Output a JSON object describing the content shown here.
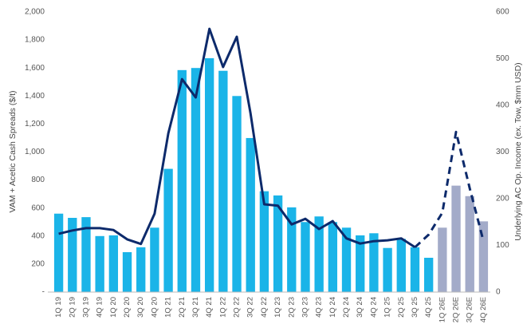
{
  "chart_data": {
    "type": "bar_line",
    "y_label": "VAM + Acetic Cash Spreads ($/t)",
    "y2_label": "Underlying AC Op. Income (ex. Tow, $mm USD)",
    "categories": [
      "1Q 19",
      "2Q 19",
      "3Q 19",
      "4Q 19",
      "1Q 20",
      "2Q 20",
      "3Q 20",
      "4Q 20",
      "1Q 21",
      "2Q 21",
      "3Q 21",
      "4Q 21",
      "1Q 22",
      "2Q 22",
      "3Q 22",
      "4Q 22",
      "1Q 23",
      "2Q 23",
      "3Q 23",
      "4Q 23",
      "1Q 24",
      "2Q 24",
      "3Q 24",
      "4Q 24",
      "1Q 25",
      "2Q 25",
      "3Q 25",
      "4Q 25",
      "1Q 26E",
      "2Q 26E",
      "3Q 26E",
      "4Q 26E"
    ],
    "series": [
      {
        "kind": "bar",
        "axis": "y",
        "colors": [
          "#1ab4e8",
          "#1ab4e8",
          "#1ab4e8",
          "#1ab4e8",
          "#1ab4e8",
          "#1ab4e8",
          "#1ab4e8",
          "#1ab4e8",
          "#1ab4e8",
          "#1ab4e8",
          "#1ab4e8",
          "#1ab4e8",
          "#1ab4e8",
          "#1ab4e8",
          "#1ab4e8",
          "#1ab4e8",
          "#1ab4e8",
          "#1ab4e8",
          "#1ab4e8",
          "#1ab4e8",
          "#1ab4e8",
          "#1ab4e8",
          "#1ab4e8",
          "#1ab4e8",
          "#1ab4e8",
          "#1ab4e8",
          "#1ab4e8",
          "#1ab4e8",
          "#a3abc9",
          "#a3abc9",
          "#a3abc9",
          "#a3abc9"
        ],
        "values": [
          560,
          530,
          535,
          400,
          405,
          285,
          320,
          460,
          880,
          1585,
          1600,
          1670,
          1580,
          1400,
          1100,
          720,
          690,
          605,
          500,
          540,
          500,
          460,
          405,
          420,
          315,
          380,
          320,
          245,
          460,
          760,
          685,
          505
        ]
      },
      {
        "kind": "line",
        "axis": "y2",
        "color": "#0d2a6b",
        "dashed": false,
        "values": [
          125,
          132,
          137,
          137,
          133,
          113,
          103,
          168,
          340,
          456,
          417,
          564,
          482,
          547,
          383,
          188,
          185,
          145,
          157,
          135,
          152,
          115,
          104,
          109,
          111,
          115,
          96,
          null,
          null,
          null,
          null,
          null
        ]
      },
      {
        "kind": "line",
        "axis": "y2",
        "color": "#0d2a6b",
        "dashed": true,
        "values": [
          null,
          null,
          null,
          null,
          null,
          null,
          null,
          null,
          null,
          null,
          null,
          null,
          null,
          null,
          null,
          null,
          null,
          null,
          null,
          null,
          null,
          null,
          null,
          null,
          null,
          null,
          96,
          123,
          170,
          343,
          222,
          109
        ]
      }
    ],
    "ylim": [
      0,
      2000
    ],
    "yticks": [
      {
        "value": 0,
        "label": "-"
      },
      200,
      400,
      600,
      800,
      {
        "value": 1000,
        "label": "1,000"
      },
      {
        "value": 1200,
        "label": "1,200"
      },
      {
        "value": 1400,
        "label": "1,400"
      },
      {
        "value": 1600,
        "label": "1,600"
      },
      {
        "value": 1800,
        "label": "1,800"
      },
      {
        "value": 2000,
        "label": "2,000"
      }
    ],
    "y2lim": [
      0,
      600
    ],
    "y2ticks": [
      0,
      100,
      200,
      300,
      400,
      500,
      600
    ]
  }
}
